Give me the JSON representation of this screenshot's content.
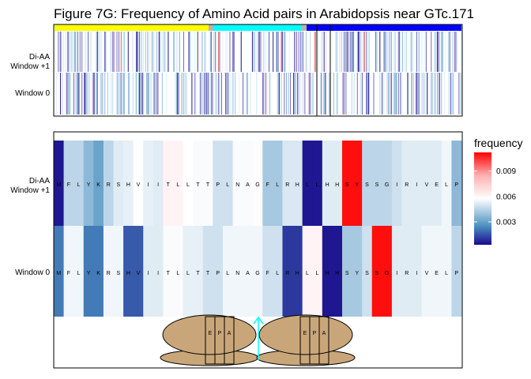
{
  "chart_data": {
    "type": "heatmap",
    "title": "Figure 7G: Frequency of Amino Acid pairs in Arabidopsis near GTc.171",
    "row_labels": {
      "window_plus1": [
        "Di-AA",
        "Window +1"
      ],
      "window0": "Window 0"
    },
    "overview": {
      "region_colors": [
        "#ffff00",
        "#b3b3b3",
        "#00ffff",
        "#b3b3b3",
        "#0000ff"
      ],
      "region_widths": [
        195,
        6,
        112,
        6,
        196
      ]
    },
    "sequence": [
      "M",
      "F",
      "L",
      "Y",
      "K",
      "R",
      "S",
      "H",
      "V",
      "I",
      "I",
      "T",
      "L",
      "L",
      "T",
      "T",
      "P",
      "L",
      "N",
      "A",
      "G",
      "F",
      "L",
      "R",
      "H",
      "L",
      "L",
      "H",
      "H",
      "S",
      "Y",
      "S",
      "S",
      "G",
      "I",
      "R",
      "I",
      "V",
      "E",
      "L",
      "P"
    ],
    "window_plus1_values": [
      0.0005,
      0.004,
      0.004,
      0.003,
      0.0025,
      0.004,
      0.005,
      0.0052,
      0.006,
      0.0052,
      0.005,
      0.0068,
      0.0068,
      0.006,
      0.0058,
      0.0058,
      0.0045,
      0.0045,
      0.0058,
      0.0058,
      0.0062,
      0.0035,
      0.0035,
      0.0048,
      0.0048,
      0.0005,
      0.0005,
      0.005,
      0.005,
      0.011,
      0.011,
      0.004,
      0.004,
      0.004,
      0.0045,
      0.005,
      0.005,
      0.005,
      0.005,
      0.0055,
      0.003
    ],
    "window0_values": [
      0.002,
      0.0055,
      0.0055,
      0.002,
      0.002,
      0.0055,
      0.0055,
      0.0015,
      0.0015,
      0.005,
      0.005,
      0.0058,
      0.0058,
      0.0052,
      0.0052,
      0.0045,
      0.0045,
      0.0055,
      0.0055,
      0.0055,
      0.0055,
      0.0045,
      0.0045,
      0.001,
      0.001,
      0.0068,
      0.0068,
      0.0005,
      0.0005,
      0.0035,
      0.0035,
      0.0045,
      0.011,
      0.011,
      0.005,
      0.005,
      0.005,
      0.0055,
      0.0055,
      0.0055,
      0.004
    ],
    "ribosome_sites": [
      "E",
      "P",
      "A"
    ],
    "legend": {
      "title": "frequency",
      "ticks": [
        "0.009",
        "0.006",
        "0.003"
      ],
      "tick_values": [
        0.009,
        0.006,
        0.003
      ],
      "range": [
        0.0003,
        0.0112
      ],
      "colors": [
        "#1a0a8c",
        "#ffffff",
        "#ff0000"
      ]
    }
  }
}
